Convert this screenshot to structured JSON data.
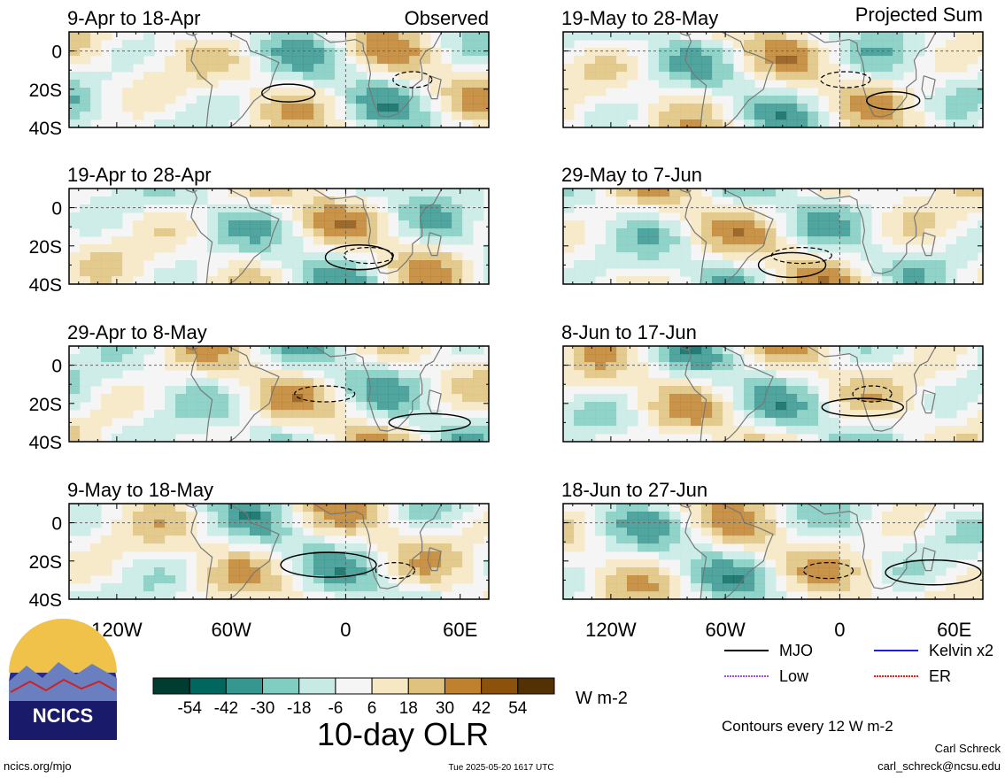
{
  "chart_data": {
    "type": "heatmap",
    "title": "10-day OLR",
    "units": "W m-2",
    "contour_note": "Contours every 12 W m-2",
    "labels": {
      "observed": "Observed",
      "projected": "Projected Sum"
    },
    "y_ticks": [
      "0",
      "20S",
      "40S"
    ],
    "x_ticks": [
      "120W",
      "60W",
      "0",
      "60E"
    ],
    "colorbar": {
      "ticks": [
        "-54",
        "-42",
        "-30",
        "-18",
        "-6",
        "6",
        "18",
        "30",
        "42",
        "54"
      ],
      "colors": [
        "#003c30",
        "#01665e",
        "#35978f",
        "#80cdc1",
        "#c7eae5",
        "#f5f5f5",
        "#f6e8c3",
        "#dfc27d",
        "#bf812d",
        "#8c510a",
        "#543005"
      ]
    },
    "panels": [
      {
        "period": "9-Apr to 18-Apr",
        "kind": "observed"
      },
      {
        "period": "19-Apr to 28-Apr",
        "kind": "observed"
      },
      {
        "period": "29-Apr to 8-May",
        "kind": "observed"
      },
      {
        "period": "9-May to 18-May",
        "kind": "observed"
      },
      {
        "period": "19-May to 28-May",
        "kind": "projected"
      },
      {
        "period": "29-May to 7-Jun",
        "kind": "projected"
      },
      {
        "period": "8-Jun to 17-Jun",
        "kind": "projected"
      },
      {
        "period": "18-Jun to 27-Jun",
        "kind": "projected"
      }
    ],
    "legend": [
      {
        "label": "MJO",
        "color": "#000000",
        "style": "solid"
      },
      {
        "label": "Kelvin x2",
        "color": "#1f1fd0",
        "style": "solid"
      },
      {
        "label": "Low",
        "color": "#a050e0",
        "style": "dotted"
      },
      {
        "label": "ER",
        "color": "#e02020",
        "style": "dotted"
      }
    ]
  },
  "logo": {
    "text": "NCICS"
  },
  "footer": {
    "site": "ncics.org/mjo",
    "timestamp": "Tue 2025-05-20 1617 UTC",
    "author": "Carl Schreck",
    "email": "carl_schreck@ncsu.edu"
  }
}
